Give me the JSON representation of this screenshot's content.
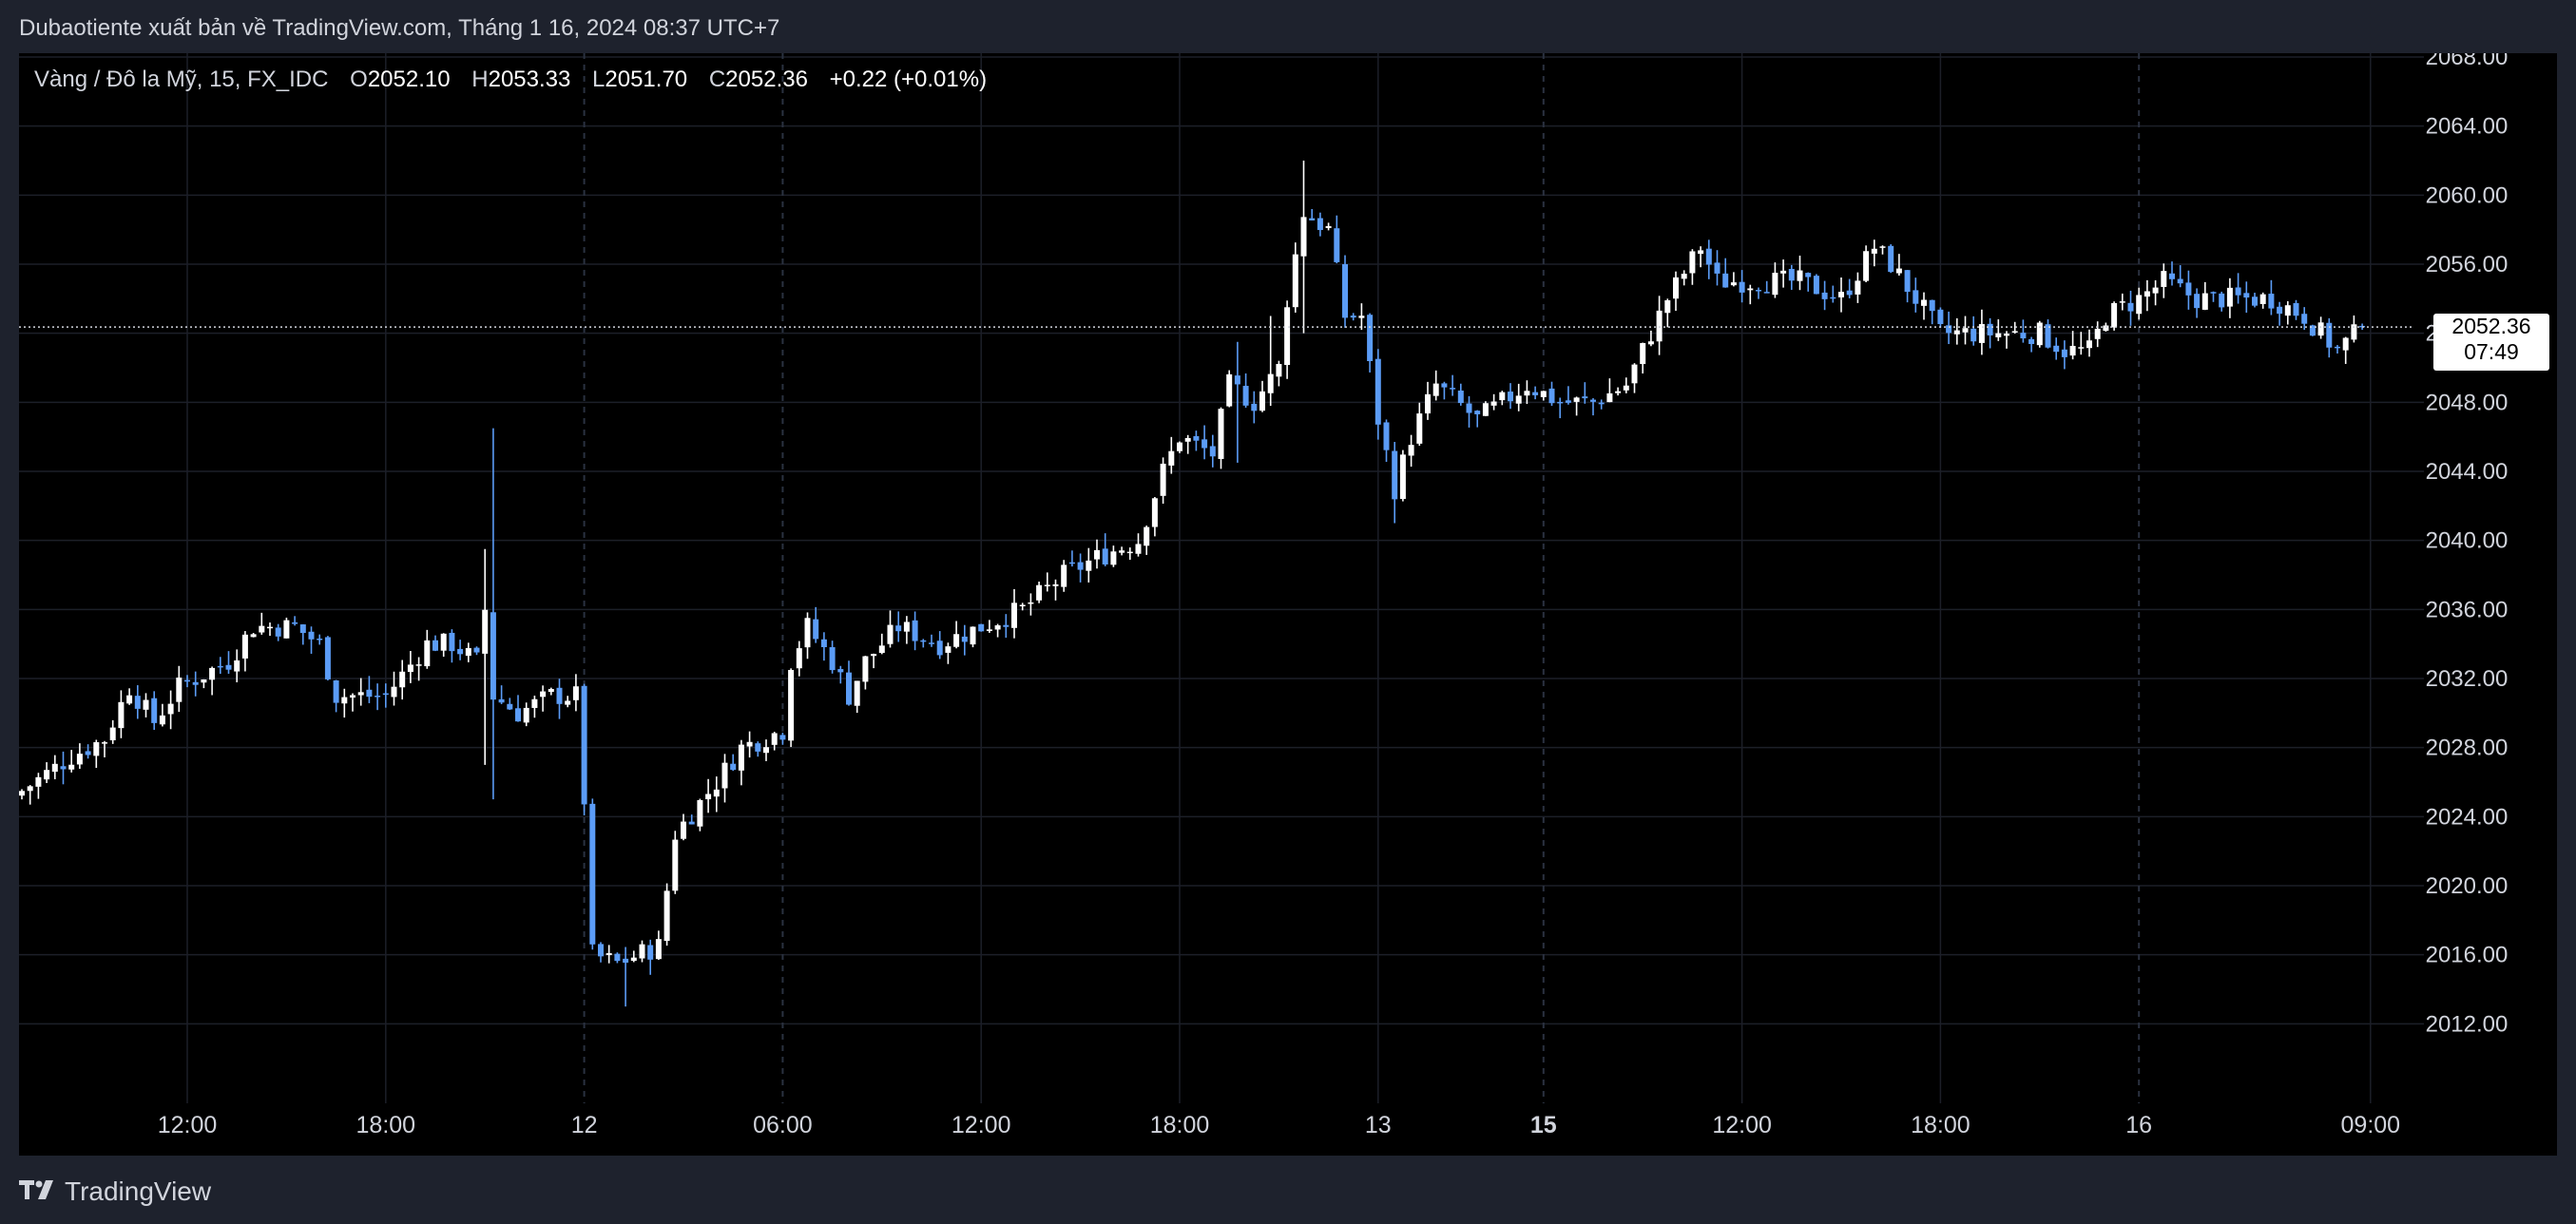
{
  "header": {
    "published_text": "Dubaotiente xuất bản về TradingView.com, Tháng 1 16, 2024 08:37 UTC+7"
  },
  "legend": {
    "symbol": "Vàng / Đô la Mỹ, 15, FX_IDC",
    "open_label": "O",
    "open_value": "2052.10",
    "high_label": "H",
    "high_value": "2053.33",
    "low_label": "L",
    "low_value": "2051.70",
    "close_label": "C",
    "close_value": "2052.36",
    "change": "+0.22 (+0.01%)"
  },
  "price_badge": {
    "price": "2052.36",
    "countdown": "07:49"
  },
  "footer": {
    "brand": "TradingView",
    "logo_icon": "tradingview-logo-icon"
  },
  "colors": {
    "up": "#ffffff",
    "down": "#5b9cf6",
    "background": "#000000",
    "frame": "#1e222d",
    "grid": "#1c1f28",
    "text": "#d1d4dc"
  },
  "chart_data": {
    "type": "candlestick",
    "symbol": "Vàng / Đô la Mỹ",
    "interval": "15",
    "ylim": [
      2008,
      2068
    ],
    "y_ticks": [
      "2068.00",
      "2064.00",
      "2060.00",
      "2056.00",
      "2052.00",
      "2048.00",
      "2044.00",
      "2040.00",
      "2036.00",
      "2032.00",
      "2028.00",
      "2024.00",
      "2020.00",
      "2016.00",
      "2012.00"
    ],
    "y_tick_values": [
      2068,
      2064,
      2060,
      2056,
      2052,
      2048,
      2044,
      2040,
      2036,
      2032,
      2028,
      2024,
      2020,
      2016,
      2012
    ],
    "x_ticks": [
      {
        "label": "12:00",
        "bar": 20,
        "bold": false
      },
      {
        "label": "18:00",
        "bar": 44,
        "bold": false
      },
      {
        "label": "12",
        "bar": 68,
        "bold": false,
        "separator": true
      },
      {
        "label": "06:00",
        "bar": 92,
        "bold": false,
        "separator": true
      },
      {
        "label": "12:00",
        "bar": 116,
        "bold": false
      },
      {
        "label": "18:00",
        "bar": 140,
        "bold": false
      },
      {
        "label": "13",
        "bar": 164,
        "bold": false
      },
      {
        "label": "15",
        "bar": 184,
        "bold": true,
        "separator": true
      },
      {
        "label": "12:00",
        "bar": 208,
        "bold": false
      },
      {
        "label": "18:00",
        "bar": 232,
        "bold": false
      },
      {
        "label": "16",
        "bar": 256,
        "bold": false,
        "separator": true
      },
      {
        "label": "09:00",
        "bar": 284,
        "bold": false
      }
    ],
    "grid": true,
    "current_price": 2052.36,
    "anchors": [
      [
        0,
        2025.5
      ],
      [
        6,
        2027.5
      ],
      [
        10,
        2028.5
      ],
      [
        13,
        2031.5
      ],
      [
        16,
        2029.5
      ],
      [
        19,
        2031.5
      ],
      [
        25,
        2033
      ],
      [
        28,
        2035
      ],
      [
        33,
        2035
      ],
      [
        36,
        2034
      ],
      [
        38,
        2031
      ],
      [
        44,
        2031
      ],
      [
        49,
        2034
      ],
      [
        52,
        2034
      ],
      [
        55,
        2033
      ],
      [
        56,
        2036
      ],
      [
        57,
        2031
      ],
      [
        60,
        2030
      ],
      [
        64,
        2031
      ],
      [
        67,
        2031
      ],
      [
        68,
        2025
      ],
      [
        69,
        2016
      ],
      [
        72,
        2015.5
      ],
      [
        77,
        2016.5
      ],
      [
        79,
        2023
      ],
      [
        84,
        2026
      ],
      [
        87,
        2028
      ],
      [
        92,
        2029
      ],
      [
        93,
        2033
      ],
      [
        95,
        2035
      ],
      [
        98,
        2033
      ],
      [
        100,
        2031
      ],
      [
        102,
        2033
      ],
      [
        106,
        2035
      ],
      [
        111,
        2034
      ],
      [
        116,
        2035
      ],
      [
        121,
        2036
      ],
      [
        126,
        2038
      ],
      [
        130,
        2039
      ],
      [
        135,
        2040
      ],
      [
        138,
        2044
      ],
      [
        140,
        2046
      ],
      [
        144,
        2045
      ],
      [
        146,
        2049
      ],
      [
        149,
        2048
      ],
      [
        152,
        2050
      ],
      [
        153,
        2054
      ],
      [
        155,
        2059
      ],
      [
        158,
        2058
      ],
      [
        160,
        2053
      ],
      [
        162,
        2053
      ],
      [
        164,
        2047
      ],
      [
        166,
        2043
      ],
      [
        168,
        2046
      ],
      [
        171,
        2049
      ],
      [
        176,
        2047
      ],
      [
        182,
        2049
      ],
      [
        186,
        2048
      ],
      [
        190,
        2048
      ],
      [
        194,
        2049
      ],
      [
        197,
        2052
      ],
      [
        199,
        2054
      ],
      [
        203,
        2057
      ],
      [
        205,
        2055
      ],
      [
        210,
        2055
      ],
      [
        215,
        2055
      ],
      [
        220,
        2054
      ],
      [
        224,
        2057
      ],
      [
        226,
        2056
      ],
      [
        229,
        2054
      ],
      [
        232,
        2052
      ],
      [
        238,
        2052
      ],
      [
        244,
        2052
      ],
      [
        247,
        2051
      ],
      [
        250,
        2051
      ],
      [
        252,
        2053
      ],
      [
        256,
        2054
      ],
      [
        259,
        2055
      ],
      [
        263,
        2054
      ],
      [
        267,
        2054
      ],
      [
        272,
        2054
      ],
      [
        276,
        2053
      ],
      [
        280,
        2051
      ],
      [
        283,
        2052.36
      ]
    ],
    "series": [
      {
        "type": "candles",
        "bars": 284
      }
    ]
  }
}
